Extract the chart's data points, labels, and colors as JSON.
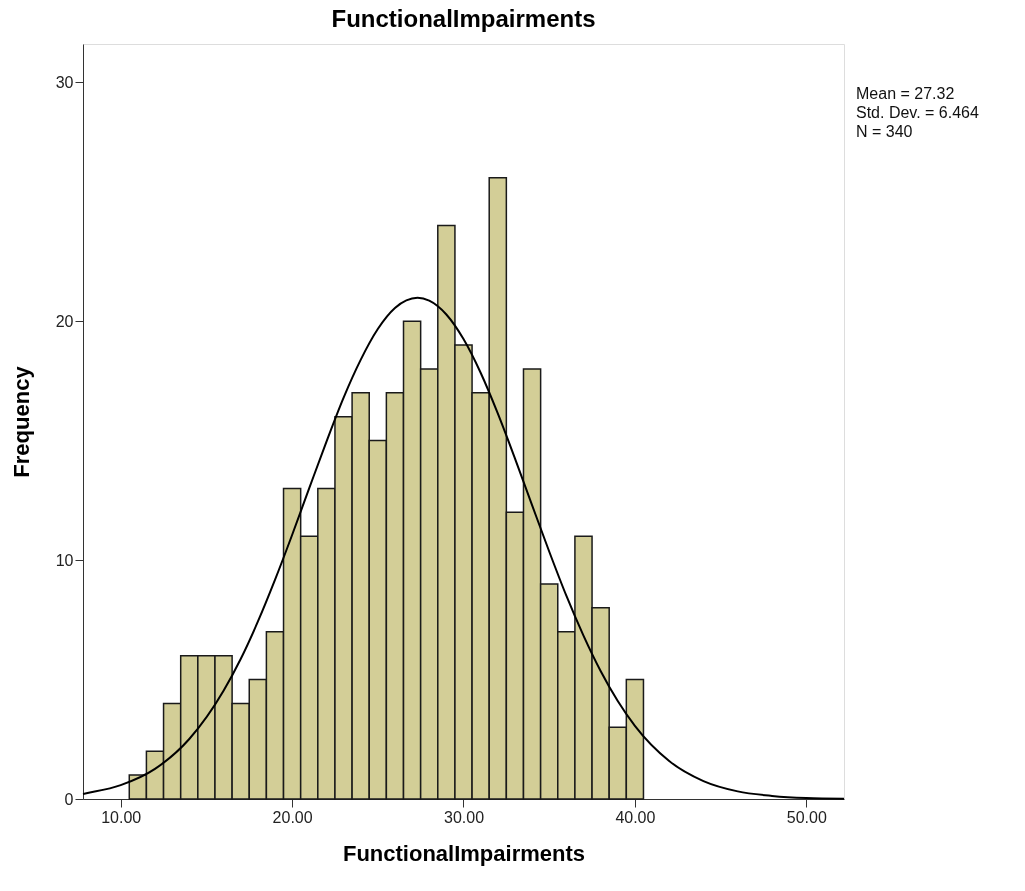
{
  "chart_data": {
    "type": "histogram",
    "title": "FunctionalImpairments",
    "xlabel": "FunctionalImpairments",
    "ylabel": "Frequency",
    "bins": [
      10.5,
      11.5,
      12.5,
      13.5,
      14.5,
      15.5,
      16.5,
      17.5,
      18.5,
      19.5,
      20.5,
      21.5,
      22.5,
      23.5,
      24.5,
      25.5,
      26.5,
      27.5,
      28.5,
      29.5,
      30.5,
      31.5,
      32.5,
      33.5,
      34.5,
      35.5,
      36.5,
      37.5,
      38.5,
      39.5,
      40.5
    ],
    "values": [
      1,
      2,
      4,
      6,
      6,
      6,
      4,
      5,
      7,
      13,
      11,
      13,
      16,
      17,
      15,
      17,
      20,
      18,
      24,
      19,
      17,
      26,
      12,
      18,
      9,
      7,
      11,
      8,
      3,
      5
    ],
    "color": "#d3ce97",
    "series": [
      {
        "type": "line",
        "color": "#000000",
        "x": [
          7.8,
          8,
          10,
          12,
          14,
          16,
          17,
          18,
          19,
          20,
          21,
          22,
          23,
          24,
          25,
          26,
          27.32,
          28,
          29,
          30,
          31,
          32,
          33,
          34,
          35,
          36,
          37,
          38,
          39,
          40,
          42,
          44,
          46,
          48,
          50,
          52.2
        ],
        "values": [
          0.21,
          0.24,
          0.58,
          1.26,
          2.51,
          4.53,
          5.86,
          7.42,
          9.17,
          11.05,
          13.01,
          14.95,
          16.79,
          18.38,
          19.67,
          20.55,
          20.98,
          20.86,
          20.28,
          19.25,
          17.84,
          16.14,
          14.26,
          12.3,
          10.36,
          8.51,
          6.84,
          5.36,
          4.1,
          3.06,
          1.59,
          0.75,
          0.32,
          0.13,
          0.04,
          0.01
        ]
      }
    ],
    "xlim": [
      7.8,
      52.2
    ],
    "xticks": [
      {
        "value": 10,
        "label": "10.00"
      },
      {
        "value": 20,
        "label": "20.00"
      },
      {
        "value": 30,
        "label": "30.00"
      },
      {
        "value": 40,
        "label": "40.00"
      },
      {
        "value": 50,
        "label": "50.00"
      }
    ],
    "ylim": [
      0,
      31.6
    ],
    "yticks": [
      0,
      10,
      20,
      30
    ],
    "grid": false,
    "annotations": [
      "Mean = 27.32",
      "Std. Dev. = 6.464",
      "N = 340"
    ]
  }
}
